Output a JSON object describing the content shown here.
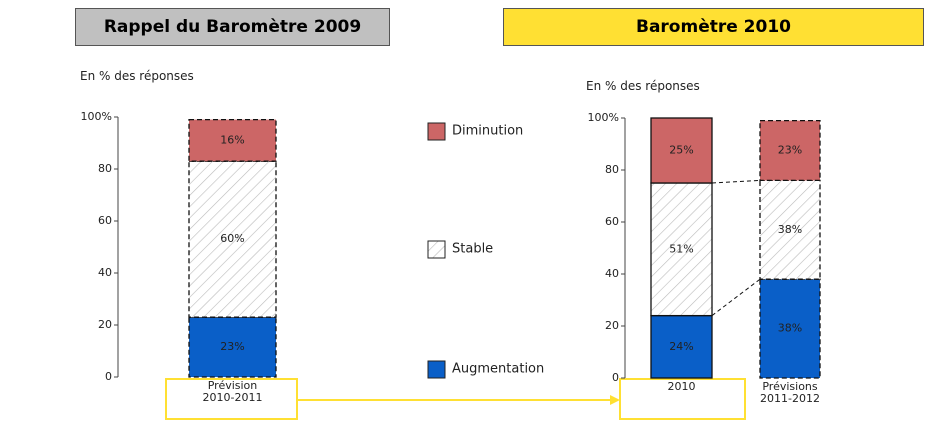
{
  "legend": [
    {
      "name": "Augmentation",
      "color": "#0a5fc8"
    },
    {
      "name": "Stable",
      "color": "#ffffff"
    },
    {
      "name": "Diminution",
      "color": "#cc6666"
    }
  ],
  "chart_data": [
    {
      "type": "stacked_bar",
      "title": "Rappel du Baromètre 2009",
      "ylabel": "En % des réponses",
      "categories": [
        "Prévision\n2010-2011"
      ],
      "series": [
        {
          "values": [
            23
          ],
          "value_labels": [
            "23%"
          ]
        },
        {
          "values": [
            60
          ],
          "value_labels": [
            "60%"
          ]
        },
        {
          "values": [
            16
          ],
          "value_labels": [
            "16%"
          ]
        }
      ],
      "ylim": [
        0,
        100
      ],
      "yticks": [
        0,
        20,
        40,
        60,
        80,
        {
          "value": 100,
          "label": "100%"
        }
      ]
    },
    {
      "type": "stacked_bar",
      "title": "Baromètre 2010",
      "ylabel": "En % des réponses",
      "categories": [
        "2010",
        "Prévisions\n2011-2012"
      ],
      "series": [
        {
          "values": [
            24,
            38
          ],
          "value_labels": [
            "24%",
            "38%"
          ]
        },
        {
          "values": [
            51,
            38
          ],
          "value_labels": [
            "51%",
            "38%"
          ]
        },
        {
          "values": [
            25,
            23
          ],
          "value_labels": [
            "25%",
            "23%"
          ]
        }
      ],
      "ylim": [
        0,
        100
      ],
      "yticks": [
        0,
        20,
        40,
        60,
        80,
        {
          "value": 100,
          "label": "100%"
        }
      ]
    }
  ]
}
